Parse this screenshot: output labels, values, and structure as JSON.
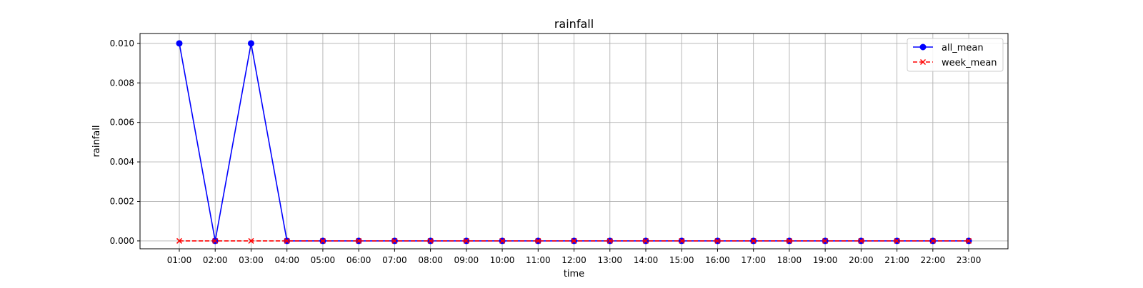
{
  "chart_data": {
    "type": "line",
    "title": "rainfall",
    "xlabel": "time",
    "ylabel": "rainfall",
    "categories": [
      "01:00",
      "02:00",
      "03:00",
      "04:00",
      "05:00",
      "06:00",
      "07:00",
      "08:00",
      "09:00",
      "10:00",
      "11:00",
      "12:00",
      "13:00",
      "14:00",
      "15:00",
      "16:00",
      "17:00",
      "18:00",
      "19:00",
      "20:00",
      "21:00",
      "22:00",
      "23:00"
    ],
    "ylim": [
      -0.0004,
      0.0105
    ],
    "yticks": [
      "0.000",
      "0.002",
      "0.004",
      "0.006",
      "0.008",
      "0.010"
    ],
    "ytick_values": [
      0,
      0.002,
      0.004,
      0.006,
      0.008,
      0.01
    ],
    "grid": true,
    "legend_position": "top-right",
    "series": [
      {
        "name": "all_mean",
        "color": "#0000ff",
        "line_style": "solid",
        "marker": "circle",
        "values": [
          0.01,
          0,
          0.01,
          0,
          0,
          0,
          0,
          0,
          0,
          0,
          0,
          0,
          0,
          0,
          0,
          0,
          0,
          0,
          0,
          0,
          0,
          0,
          0
        ]
      },
      {
        "name": "week_mean",
        "color": "#ff0000",
        "line_style": "dashed",
        "marker": "x",
        "values": [
          0,
          0,
          0,
          0,
          0,
          0,
          0,
          0,
          0,
          0,
          0,
          0,
          0,
          0,
          0,
          0,
          0,
          0,
          0,
          0,
          0,
          0,
          0
        ]
      }
    ]
  }
}
